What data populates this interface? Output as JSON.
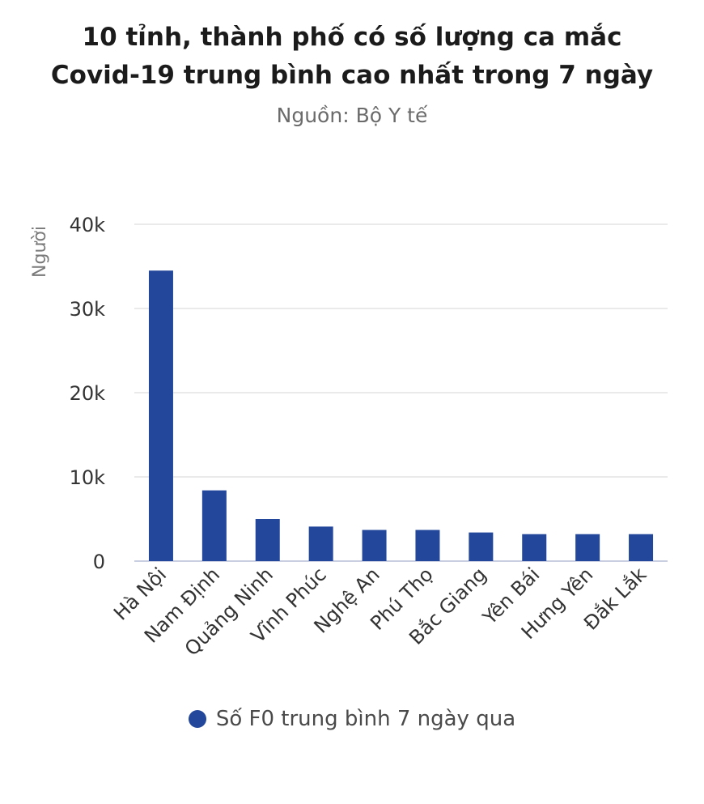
{
  "chart_data": {
    "type": "bar",
    "title_line1": "10 tỉnh, thành phố có số lượng ca mắc",
    "title_line2": "Covid-19 trung bình cao nhất trong 7 ngày",
    "subtitle": "Nguồn: Bộ Y tế",
    "ylabel": "Người",
    "xlabel": "",
    "categories": [
      "Hà Nội",
      "Nam Định",
      "Quảng Ninh",
      "Vĩnh Phúc",
      "Nghệ An",
      "Phú Thọ",
      "Bắc Giang",
      "Yên Bái",
      "Hưng Yên",
      "Đắk Lắk"
    ],
    "series": [
      {
        "name": "Số F0 trung bình 7 ngày qua",
        "color": "#22479b",
        "values": [
          34500,
          8400,
          5000,
          4100,
          3700,
          3700,
          3400,
          3200,
          3200,
          3200
        ]
      }
    ],
    "ylim": [
      0,
      40000
    ],
    "yticks": [
      0,
      10000,
      20000,
      30000,
      40000
    ],
    "ytick_labels": [
      "0",
      "10k",
      "20k",
      "30k",
      "40k"
    ],
    "grid": true,
    "legend_position": "bottom"
  }
}
